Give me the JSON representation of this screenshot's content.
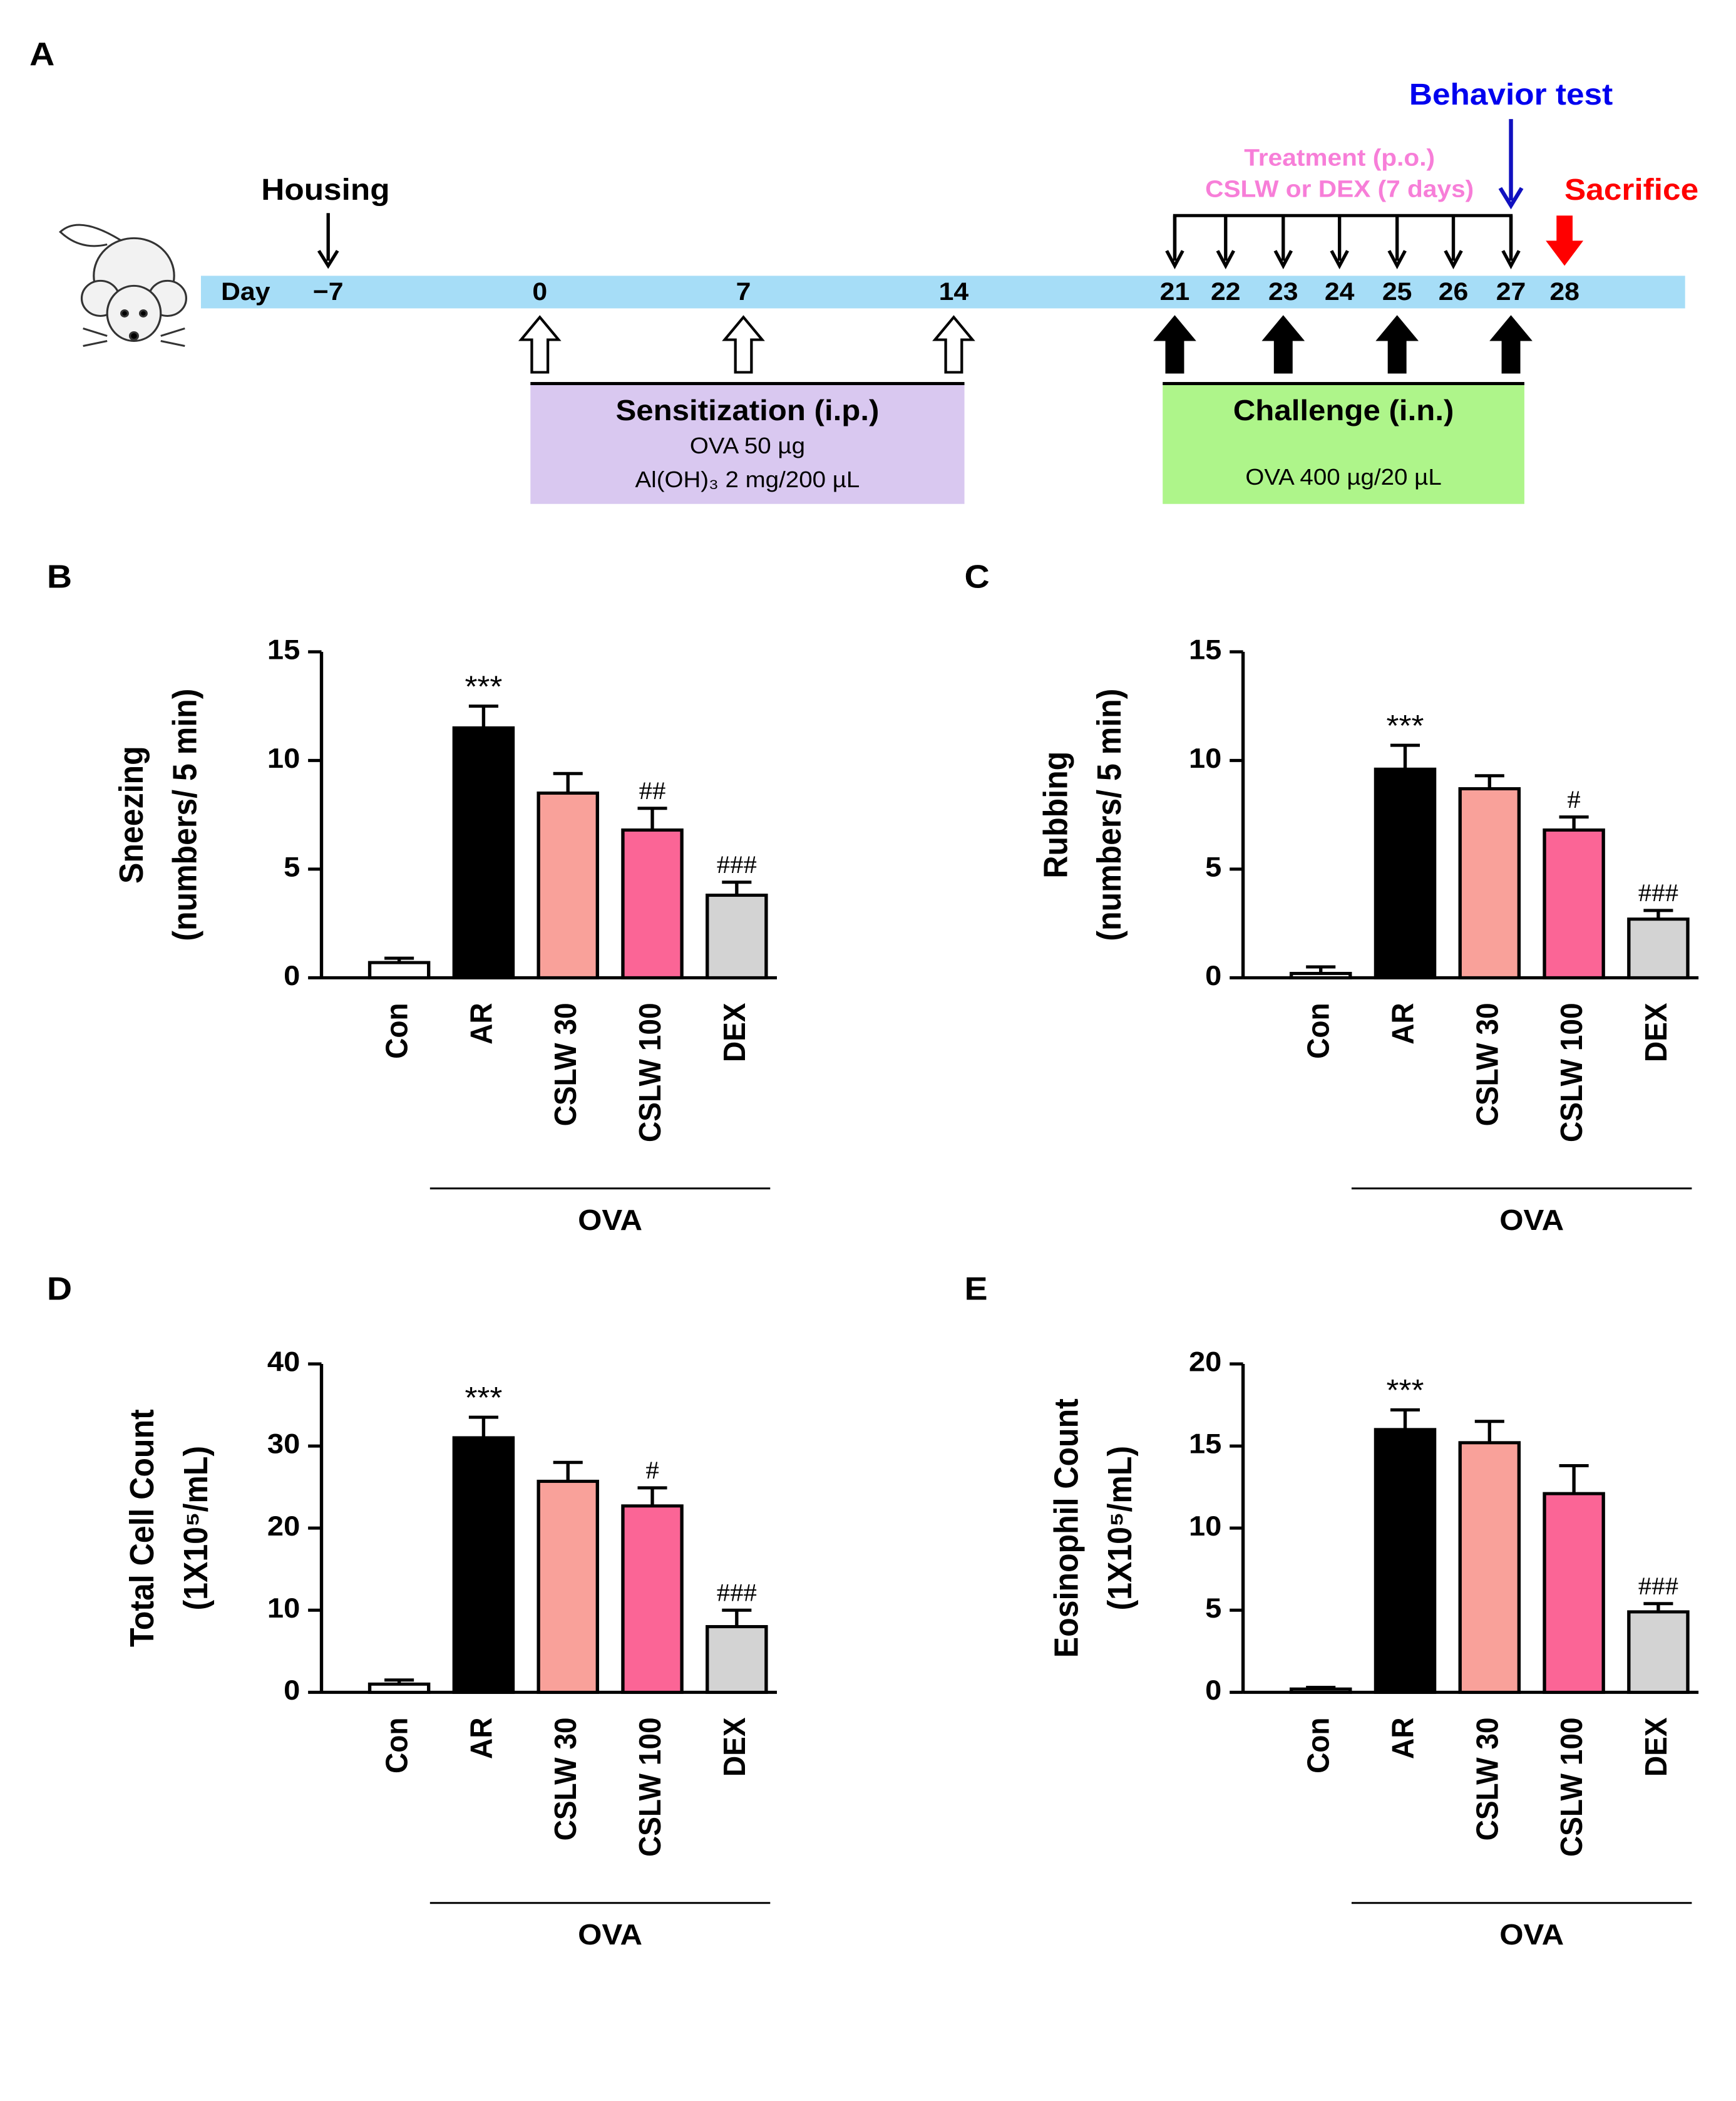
{
  "timeline": {
    "panel": "A",
    "housing": "Housing",
    "day_label": "Day",
    "days": [
      "−7",
      "0",
      "7",
      "14",
      "21",
      "22",
      "23",
      "24",
      "25",
      "26",
      "27",
      "28"
    ],
    "behavior": "Behavior test",
    "treatment": [
      "Treatment (p.o.)",
      "CSLW or DEX (7 days)"
    ],
    "sacrifice": "Sacrifice",
    "sensitization": {
      "title": "Sensitization (i.p.)",
      "lines": [
        "OVA 50 µg",
        "Al(OH)₃ 2 mg/200 µL"
      ]
    },
    "challenge": {
      "title": "Challenge (i.n.)",
      "lines": [
        "OVA 400 µg/20 µL"
      ]
    }
  },
  "chart_data": [
    {
      "type": "bar",
      "panel": "B",
      "ylabel": [
        "Sneezing",
        "(numbers/ 5 min)"
      ],
      "categories": [
        "Con",
        "AR",
        "CSLW 30",
        "CSLW 100",
        "DEX"
      ],
      "values": [
        0.7,
        11.5,
        8.5,
        6.8,
        3.8
      ],
      "errors": [
        0.2,
        1.0,
        0.9,
        1.0,
        0.6
      ],
      "annotations": [
        null,
        "***",
        null,
        "##",
        "###"
      ],
      "colors": [
        "#ffffff",
        "#000000",
        "#f9a19a",
        "#fb6596",
        "#d3d3d3"
      ],
      "group": "OVA",
      "ylim": [
        0,
        15
      ],
      "yticks": [
        0,
        5,
        10,
        15
      ]
    },
    {
      "type": "bar",
      "panel": "C",
      "ylabel": [
        "Rubbing",
        "(numbers/ 5 min)"
      ],
      "categories": [
        "Con",
        "AR",
        "CSLW 30",
        "CSLW 100",
        "DEX"
      ],
      "values": [
        0.2,
        9.6,
        8.7,
        6.8,
        2.7
      ],
      "errors": [
        0.3,
        1.1,
        0.6,
        0.6,
        0.4
      ],
      "annotations": [
        null,
        "***",
        null,
        "#",
        "###"
      ],
      "colors": [
        "#ffffff",
        "#000000",
        "#f9a19a",
        "#fb6596",
        "#d3d3d3"
      ],
      "group": "OVA",
      "ylim": [
        0,
        15
      ],
      "yticks": [
        0,
        5,
        10,
        15
      ]
    },
    {
      "type": "bar",
      "panel": "D",
      "ylabel": [
        "Total Cell Count",
        "(1X10⁵/mL)"
      ],
      "categories": [
        "Con",
        "AR",
        "CSLW 30",
        "CSLW 100",
        "DEX"
      ],
      "values": [
        1.0,
        31,
        25.7,
        22.7,
        8
      ],
      "errors": [
        0.5,
        2.5,
        2.3,
        2.2,
        2
      ],
      "annotations": [
        null,
        "***",
        null,
        "#",
        "###"
      ],
      "colors": [
        "#ffffff",
        "#000000",
        "#f9a19a",
        "#fb6596",
        "#d3d3d3"
      ],
      "group": "OVA",
      "ylim": [
        0,
        40
      ],
      "yticks": [
        0,
        10,
        20,
        30,
        40
      ]
    },
    {
      "type": "bar",
      "panel": "E",
      "ylabel": [
        "Eosinophil Count",
        "(1X10⁵/mL)"
      ],
      "categories": [
        "Con",
        "AR",
        "CSLW 30",
        "CSLW 100",
        "DEX"
      ],
      "values": [
        0.2,
        16,
        15.2,
        12.1,
        4.9
      ],
      "errors": [
        0.1,
        1.2,
        1.3,
        1.7,
        0.5
      ],
      "annotations": [
        null,
        "***",
        null,
        null,
        "###"
      ],
      "colors": [
        "#ffffff",
        "#000000",
        "#f9a19a",
        "#fb6596",
        "#d3d3d3"
      ],
      "group": "OVA",
      "ylim": [
        0,
        20
      ],
      "yticks": [
        0,
        5,
        10,
        15,
        20
      ]
    }
  ]
}
